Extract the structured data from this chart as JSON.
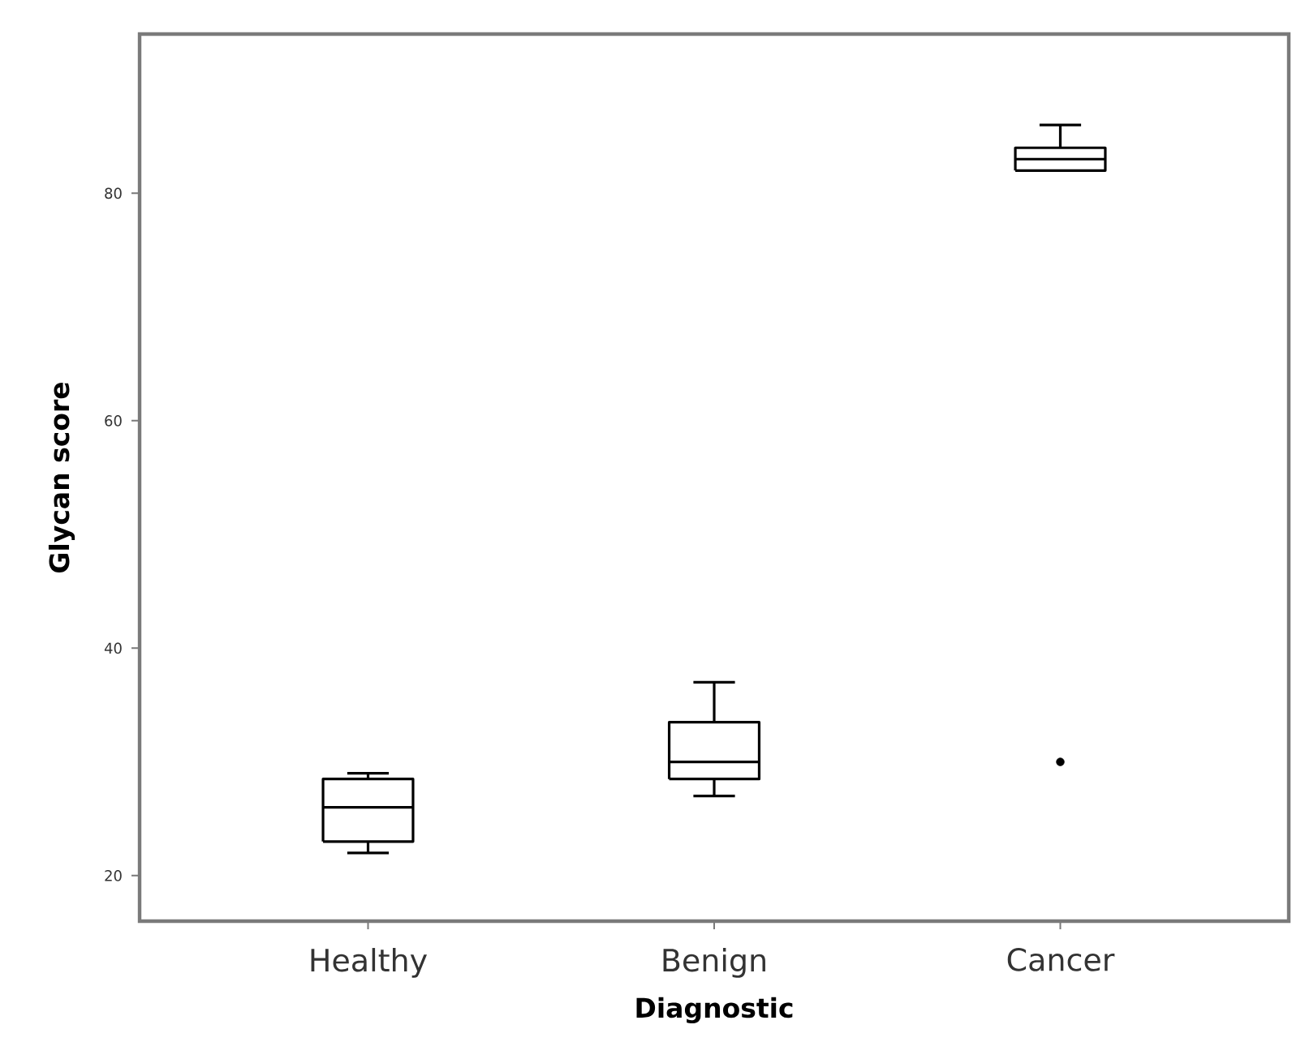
{
  "chart_data": {
    "type": "box",
    "xlabel": "Diagnostic",
    "ylabel": "Glycan score",
    "categories": [
      "Healthy",
      "Benign",
      "Cancer"
    ],
    "color": "#000000",
    "boxes": [
      {
        "low": 22,
        "q1": 23,
        "median": 26,
        "q3": 28.5,
        "high": 29
      },
      {
        "low": 27,
        "q1": 28.5,
        "median": 30,
        "q3": 33.5,
        "high": 37
      },
      {
        "low": 82,
        "q1": 82,
        "median": 83,
        "q3": 84,
        "high": 86,
        "outliers": [
          30
        ]
      }
    ],
    "ylim": [
      16,
      94
    ],
    "yticks": [
      20,
      40,
      60,
      80
    ]
  }
}
